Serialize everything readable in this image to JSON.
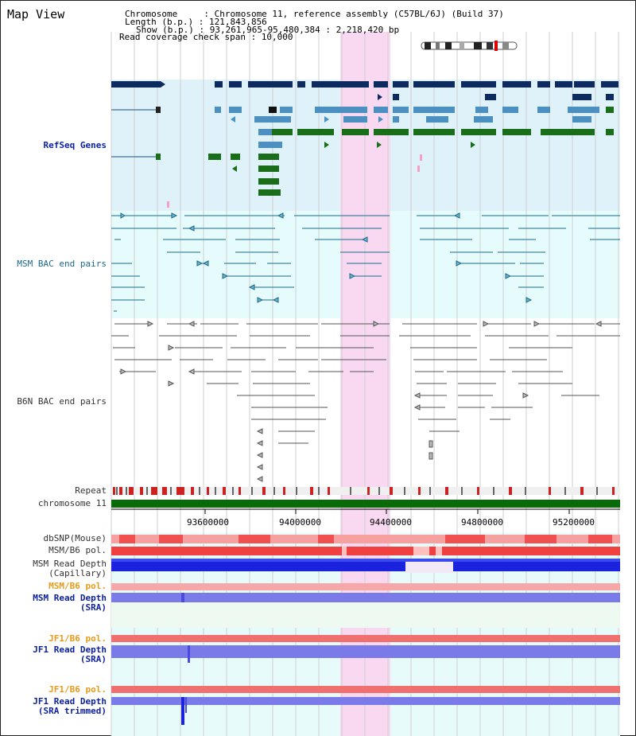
{
  "title": "Map View",
  "info": {
    "chromosome_line": "Chromosome     : Chromosome 11, reference assembly (C57BL/6J) (Build 37)",
    "length_line": "Length (b.p.) : 121,843,856",
    "show_line": "Show (b.p.) : 93,261,965-95,480,384 : 2,218,420 bp",
    "coverage_line": "Read coverage check span : 10,000"
  },
  "tracks": {
    "refseq": "RefSeq Genes",
    "msm_bac": "MSM BAC end pairs",
    "b6n_bac": "B6N BAC end pairs",
    "repeat": "Repeat",
    "chromosome": "chromosome 11",
    "dbsnp": "dbSNP(Mouse)",
    "msm_b6_pol": "MSM/B6 pol.",
    "msm_rd_cap_1": "MSM Read Depth",
    "msm_rd_cap_2": "(Capillary)",
    "msm_b6_pol2": "MSM/B6 pol.",
    "msm_rd_sra_1": "MSM Read Depth",
    "msm_rd_sra_2": "(SRA)",
    "jf1_b6_pol": "JF1/B6 pol.",
    "jf1_rd_sra_1": "JF1 Read Depth",
    "jf1_rd_sra_2": "(SRA)",
    "jf1_b6_pol2": "JF1/B6 pol.",
    "jf1_rd_trim_1": "JF1 Read Depth",
    "jf1_rd_trim_2": "(SRA trimmed)"
  },
  "axis": {
    "ticks": [
      "93600000",
      "94000000",
      "94400000",
      "94800000",
      "95200000"
    ]
  },
  "colors": {
    "refseq_bg": "#dff2fa",
    "msm_bg": "#e6fbfb",
    "highlight": "#f9d9f2",
    "navy_gene": "#0d2b5e",
    "blue_gene": "#4b90c0",
    "green_gene": "#1a6e1a",
    "chromosome": "#0a6a0a"
  }
}
